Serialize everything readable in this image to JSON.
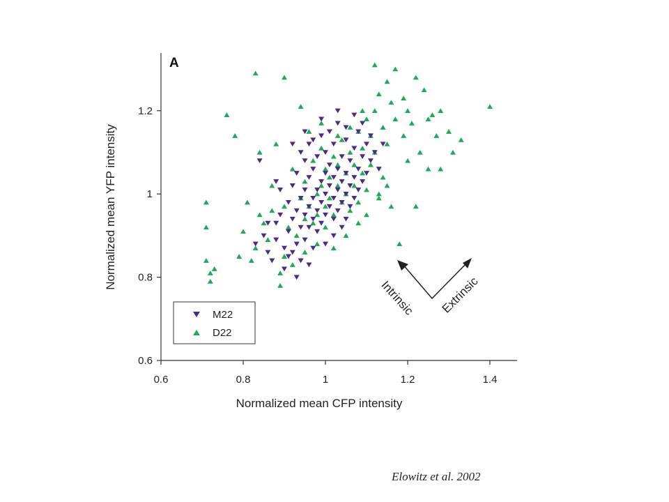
{
  "citation": "Elowitz et al. 2002",
  "chart_data": {
    "type": "scatter",
    "panel_label": "A",
    "title": "",
    "xlabel": "Normalized mean CFP intensity",
    "ylabel": "Normalized mean YFP intensity",
    "xlim": [
      0.6,
      1.45
    ],
    "ylim": [
      0.6,
      1.33
    ],
    "xticks": [
      0.6,
      0.8,
      1,
      1.2,
      1.4
    ],
    "yticks": [
      0.6,
      0.8,
      1,
      1.2
    ],
    "xtick_labels": [
      "0.6",
      "0.8",
      "1",
      "1.2",
      "1.4"
    ],
    "ytick_labels": [
      "0.6",
      "0.8",
      "1",
      "1.2"
    ],
    "grid": false,
    "legend_position": "bottom-left",
    "annotations": {
      "intrinsic": "Intrinsic",
      "extrinsic": "Extrinsic"
    },
    "series": [
      {
        "name": "M22",
        "marker": "triangle-down",
        "color": "#4b2a8c",
        "points": [
          [
            0.83,
            0.88
          ],
          [
            0.85,
            0.9
          ],
          [
            0.86,
            0.86
          ],
          [
            0.87,
            0.84
          ],
          [
            0.88,
            0.93
          ],
          [
            0.88,
            0.89
          ],
          [
            0.89,
            0.95
          ],
          [
            0.9,
            0.87
          ],
          [
            0.9,
            0.82
          ],
          [
            0.91,
            0.98
          ],
          [
            0.91,
            0.91
          ],
          [
            0.92,
            0.86
          ],
          [
            0.92,
            0.94
          ],
          [
            0.92,
            1.02
          ],
          [
            0.93,
            0.88
          ],
          [
            0.93,
            0.96
          ],
          [
            0.93,
            1.05
          ],
          [
            0.94,
            0.92
          ],
          [
            0.94,
            0.99
          ],
          [
            0.94,
            0.84
          ],
          [
            0.95,
            1.08
          ],
          [
            0.95,
            0.95
          ],
          [
            0.95,
            1.01
          ],
          [
            0.95,
            0.89
          ],
          [
            0.96,
            0.97
          ],
          [
            0.96,
            1.04
          ],
          [
            0.96,
            0.92
          ],
          [
            0.96,
            1.12
          ],
          [
            0.97,
            0.99
          ],
          [
            0.97,
            0.94
          ],
          [
            0.97,
            1.06
          ],
          [
            0.97,
            0.87
          ],
          [
            0.98,
            1.01
          ],
          [
            0.98,
            0.96
          ],
          [
            0.98,
            1.09
          ],
          [
            0.98,
            0.91
          ],
          [
            0.99,
            1.03
          ],
          [
            0.99,
            0.98
          ],
          [
            0.99,
            1.14
          ],
          [
            0.99,
            0.93
          ],
          [
            1.0,
            1.0
          ],
          [
            1.0,
            1.05
          ],
          [
            1.0,
            0.95
          ],
          [
            1.0,
            1.1
          ],
          [
            1.0,
            0.88
          ],
          [
            1.01,
            1.02
          ],
          [
            1.01,
            0.97
          ],
          [
            1.01,
            1.07
          ],
          [
            1.01,
            1.15
          ],
          [
            1.02,
            0.99
          ],
          [
            1.02,
            1.04
          ],
          [
            1.02,
            0.94
          ],
          [
            1.02,
            1.12
          ],
          [
            1.03,
            1.01
          ],
          [
            1.03,
            1.06
          ],
          [
            1.03,
            0.96
          ],
          [
            1.03,
            1.17
          ],
          [
            1.04,
            1.03
          ],
          [
            1.04,
            0.98
          ],
          [
            1.04,
            1.09
          ],
          [
            1.04,
            0.92
          ],
          [
            1.05,
            1.05
          ],
          [
            1.05,
            1.0
          ],
          [
            1.05,
            1.13
          ],
          [
            1.05,
            1.16
          ],
          [
            1.06,
            1.02
          ],
          [
            1.06,
            1.08
          ],
          [
            1.06,
            0.97
          ],
          [
            1.07,
            1.04
          ],
          [
            1.07,
            1.11
          ],
          [
            1.07,
            0.99
          ],
          [
            1.08,
            1.06
          ],
          [
            1.08,
            1.15
          ],
          [
            1.08,
            1.01
          ],
          [
            1.09,
            1.09
          ],
          [
            1.09,
            1.03
          ],
          [
            1.1,
            1.12
          ],
          [
            1.1,
            1.05
          ],
          [
            1.11,
            1.08
          ],
          [
            1.11,
            1.14
          ],
          [
            1.12,
            1.1
          ],
          [
            1.13,
            1.06
          ],
          [
            1.14,
            1.12
          ],
          [
            0.86,
            0.93
          ],
          [
            0.89,
            1.01
          ],
          [
            0.91,
            0.85
          ],
          [
            0.94,
            1.1
          ],
          [
            0.97,
            1.13
          ],
          [
            1.02,
            0.9
          ],
          [
            1.05,
            0.94
          ],
          [
            0.84,
            1.08
          ],
          [
            0.88,
            1.03
          ],
          [
            0.93,
            0.8
          ],
          [
            0.96,
            0.83
          ],
          [
            1.07,
            1.19
          ],
          [
            1.09,
            1.17
          ],
          [
            0.99,
            1.18
          ],
          [
            1.03,
            1.2
          ],
          [
            0.95,
            1.15
          ],
          [
            0.92,
            1.12
          ]
        ]
      },
      {
        "name": "D22",
        "marker": "triangle-up",
        "color": "#1faa55",
        "points": [
          [
            0.71,
            0.98
          ],
          [
            0.71,
            0.92
          ],
          [
            0.72,
            0.81
          ],
          [
            0.71,
            0.84
          ],
          [
            0.72,
            0.79
          ],
          [
            0.73,
            0.82
          ],
          [
            0.76,
            1.19
          ],
          [
            0.79,
            0.85
          ],
          [
            0.8,
            0.91
          ],
          [
            0.82,
            0.84
          ],
          [
            0.83,
            0.87
          ],
          [
            0.83,
            1.29
          ],
          [
            0.84,
            1.1
          ],
          [
            0.85,
            0.93
          ],
          [
            0.86,
            0.89
          ],
          [
            0.87,
            0.96
          ],
          [
            0.88,
            1.12
          ],
          [
            0.89,
            0.78
          ],
          [
            0.89,
            0.81
          ],
          [
            0.9,
            1.28
          ],
          [
            0.9,
            0.97
          ],
          [
            0.91,
            0.92
          ],
          [
            0.92,
            1.06
          ],
          [
            0.93,
            0.9
          ],
          [
            0.94,
            1.21
          ],
          [
            0.94,
            0.99
          ],
          [
            0.95,
            0.94
          ],
          [
            0.95,
            1.03
          ],
          [
            0.96,
            0.97
          ],
          [
            0.97,
            1.08
          ],
          [
            0.97,
            0.93
          ],
          [
            0.98,
            1.0
          ],
          [
            0.98,
            0.95
          ],
          [
            0.99,
            1.11
          ],
          [
            0.99,
            1.02
          ],
          [
            1.0,
            0.97
          ],
          [
            1.0,
            1.06
          ],
          [
            1.0,
            0.92
          ],
          [
            1.01,
            1.04
          ],
          [
            1.01,
            0.99
          ],
          [
            1.02,
            1.09
          ],
          [
            1.02,
            0.95
          ],
          [
            1.03,
            1.02
          ],
          [
            1.03,
            1.07
          ],
          [
            1.04,
            0.98
          ],
          [
            1.04,
            1.13
          ],
          [
            1.05,
            1.05
          ],
          [
            1.05,
            1.0
          ],
          [
            1.06,
            1.1
          ],
          [
            1.06,
            0.96
          ],
          [
            1.07,
            1.07
          ],
          [
            1.07,
            1.02
          ],
          [
            1.08,
            1.15
          ],
          [
            1.08,
            0.98
          ],
          [
            1.09,
            1.11
          ],
          [
            1.09,
            1.05
          ],
          [
            1.1,
            1.18
          ],
          [
            1.1,
            1.01
          ],
          [
            1.11,
            1.14
          ],
          [
            1.11,
            1.07
          ],
          [
            1.12,
            1.2
          ],
          [
            1.12,
            1.31
          ],
          [
            1.12,
            1.1
          ],
          [
            1.13,
            1.24
          ],
          [
            1.13,
            1.0
          ],
          [
            1.14,
            1.16
          ],
          [
            1.14,
            1.04
          ],
          [
            1.15,
            1.27
          ],
          [
            1.15,
            1.12
          ],
          [
            1.16,
            1.22
          ],
          [
            1.16,
            0.97
          ],
          [
            1.17,
            1.3
          ],
          [
            1.17,
            1.18
          ],
          [
            1.18,
            0.88
          ],
          [
            1.19,
            1.23
          ],
          [
            1.19,
            1.14
          ],
          [
            1.2,
            1.2
          ],
          [
            1.2,
            1.08
          ],
          [
            1.21,
            1.17
          ],
          [
            1.22,
            1.28
          ],
          [
            1.22,
            0.97
          ],
          [
            1.23,
            1.1
          ],
          [
            1.24,
            1.25
          ],
          [
            1.25,
            1.18
          ],
          [
            1.25,
            1.06
          ],
          [
            1.26,
            1.19
          ],
          [
            1.27,
            1.14
          ],
          [
            1.28,
            1.2
          ],
          [
            1.28,
            1.06
          ],
          [
            1.3,
            1.15
          ],
          [
            1.31,
            1.1
          ],
          [
            1.33,
            1.13
          ],
          [
            1.4,
            1.21
          ],
          [
            0.78,
            1.14
          ],
          [
            0.81,
            0.98
          ],
          [
            0.84,
            0.95
          ],
          [
            0.87,
            1.02
          ],
          [
            0.9,
            0.85
          ],
          [
            0.92,
            0.83
          ],
          [
            0.95,
            0.86
          ],
          [
            0.98,
            0.88
          ],
          [
            1.02,
            0.87
          ],
          [
            1.05,
            0.9
          ],
          [
            1.08,
            0.93
          ],
          [
            1.1,
            0.95
          ],
          [
            1.13,
            0.99
          ],
          [
            1.15,
            1.02
          ],
          [
            0.96,
            1.15
          ],
          [
            0.99,
            1.17
          ],
          [
            1.03,
            1.14
          ],
          [
            1.06,
            1.16
          ],
          [
            1.09,
            1.2
          ]
        ]
      }
    ]
  }
}
